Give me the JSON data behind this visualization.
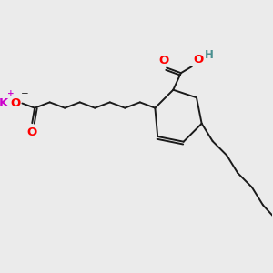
{
  "bg_color": "#ebebeb",
  "bond_color": "#1a1a1a",
  "bond_lw": 1.4,
  "O_color": "#ff0000",
  "K_color": "#cc00cc",
  "H_color": "#4a9090",
  "font_size_atom": 8.5,
  "fig_size": [
    3.0,
    3.0
  ],
  "dpi": 100,
  "xlim": [
    0,
    10
  ],
  "ylim": [
    0,
    10
  ]
}
